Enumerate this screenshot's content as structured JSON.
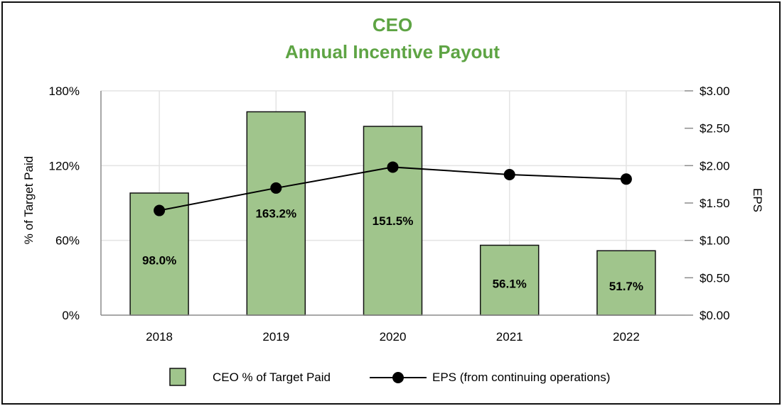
{
  "chart_data": {
    "type": "bar",
    "title": "CEO",
    "subtitle": "Annual Incentive Payout",
    "categories": [
      "2018",
      "2019",
      "2020",
      "2021",
      "2022"
    ],
    "series": [
      {
        "name": "CEO % of Target Paid",
        "type": "bar",
        "axis": "left",
        "values": [
          98.0,
          163.2,
          151.5,
          56.1,
          51.7
        ],
        "labels": [
          "98.0%",
          "163.2%",
          "151.5%",
          "56.1%",
          "51.7%"
        ],
        "color": "#a0c58c"
      },
      {
        "name": "EPS (from continuing operations)",
        "type": "line",
        "axis": "right",
        "values": [
          1.4,
          1.7,
          1.98,
          1.88,
          1.82
        ],
        "color": "#000000"
      }
    ],
    "ylabel": "% of Target Paid",
    "y2label": "EPS",
    "ylim": [
      0,
      180
    ],
    "y2lim": [
      0,
      3.0
    ],
    "yticks": [
      0,
      60,
      120,
      180
    ],
    "ytick_labels": [
      "0%",
      "60%",
      "120%",
      "180%"
    ],
    "y2ticks": [
      0,
      0.5,
      1.0,
      1.5,
      2.0,
      2.5,
      3.0
    ],
    "y2tick_labels": [
      "$0.00",
      "$0.50",
      "$1.00",
      "$1.50",
      "$2.00",
      "$2.50",
      "$3.00"
    ],
    "grid": true,
    "legend_position": "bottom"
  },
  "colors": {
    "title": "#5ea444",
    "bar_fill": "#a0c58c",
    "bar_stroke": "#111111",
    "line": "#000000",
    "grid": "#e3e3e3",
    "axis": "#8c8c8c"
  }
}
